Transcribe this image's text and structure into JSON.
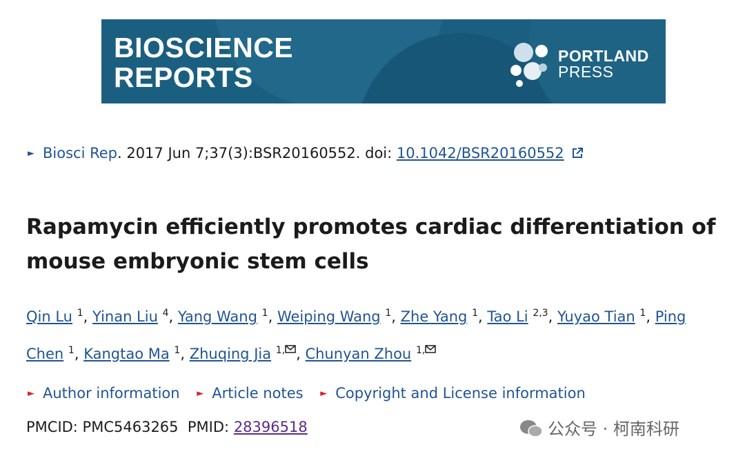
{
  "banner": {
    "journal_line1": "BIOSCIENCE",
    "journal_line2": "REPORTS",
    "publisher_line1": "PORTLAND",
    "publisher_line2": "PRESS"
  },
  "citation": {
    "journal": "Biosci Rep",
    "details": ". 2017 Jun 7;37(3):BSR20160552. doi: ",
    "doi": "10.1042/BSR20160552"
  },
  "title": "Rapamycin efficiently promotes cardiac differentiation of mouse embryonic stem cells",
  "authors": {
    "delimiter": ",",
    "list": [
      {
        "name": "Qin Lu",
        "affil": "1"
      },
      {
        "name": "Yinan Liu",
        "affil": "4"
      },
      {
        "name": "Yang Wang",
        "affil": "1"
      },
      {
        "name": "Weiping Wang",
        "affil": "1"
      },
      {
        "name": "Zhe Yang",
        "affil": "1"
      },
      {
        "name": "Tao Li",
        "affil": "2,3"
      },
      {
        "name": "Yuyao Tian",
        "affil": "1"
      },
      {
        "name": "Ping Chen",
        "affil": "1"
      },
      {
        "name": "Kangtao Ma",
        "affil": "1"
      },
      {
        "name": "Zhuqing Jia",
        "affil": "1,",
        "mail": true
      },
      {
        "name": "Chunyan Zhou",
        "affil": "1,",
        "mail": true
      }
    ]
  },
  "links": [
    "Author information",
    "Article notes",
    "Copyright and License information"
  ],
  "ids": {
    "pmcid": "PMCID: PMC5463265",
    "pmid_label": "PMID:",
    "pmid": "28396518"
  },
  "watermark": "公众号 · 柯南科研"
}
